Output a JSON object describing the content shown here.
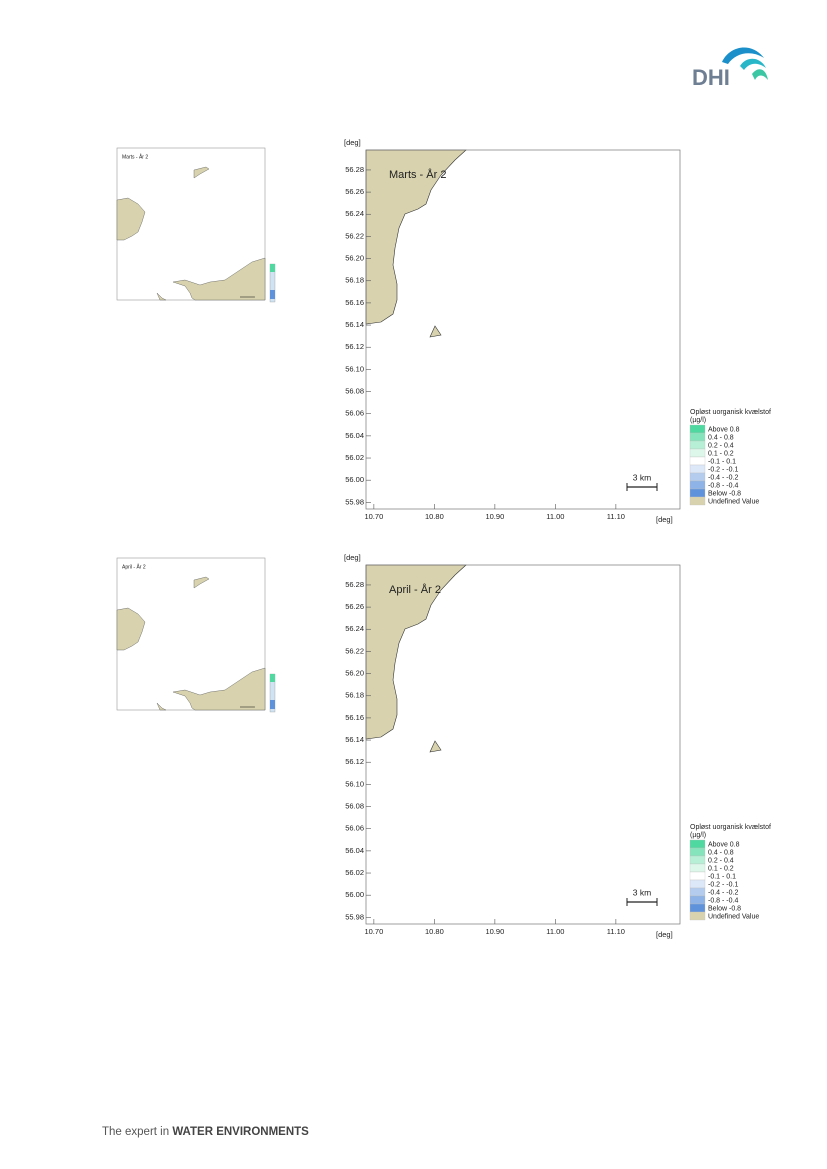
{
  "logo": "DHI",
  "figures": [
    {
      "title": "Marts - År 2",
      "x_unit": "[deg]",
      "y_unit": "[deg]",
      "xlim": [
        10.687,
        11.206
      ],
      "ylim": [
        55.974,
        56.298
      ],
      "xticks": [
        {
          "value": 10.7,
          "label": "10.70"
        },
        {
          "value": 10.8,
          "label": "10.80"
        },
        {
          "value": 10.9,
          "label": "10.90"
        },
        {
          "value": 11.0,
          "label": "11.00"
        },
        {
          "value": 11.1,
          "label": "11.10"
        }
      ],
      "yticks": [
        55.98,
        {
          "value": 56.0,
          "label": "56.00"
        },
        56.02,
        56.04,
        56.06,
        56.08,
        {
          "value": 56.1,
          "label": "56.10"
        },
        56.12,
        56.14,
        56.16,
        56.18,
        {
          "value": 56.2,
          "label": "56.20"
        },
        56.22,
        56.24,
        56.26,
        56.28
      ],
      "scale_bar": "3 km",
      "legend": {
        "title": "Opløst uorganisk kvælstof",
        "unit": "(µg/l)",
        "items": [
          {
            "label": "Above  0.8",
            "color": "#4fd8a0"
          },
          {
            "label": "0.4 -  0.8",
            "color": "#86e4bd"
          },
          {
            "label": "0.2 -  0.4",
            "color": "#b6efd5"
          },
          {
            "label": "0.1 -  0.2",
            "color": "#def7eb"
          },
          {
            "label": "-0.1 -  0.1",
            "color": "#ffffff"
          },
          {
            "label": "-0.2 - -0.1",
            "color": "#dce7f7"
          },
          {
            "label": "-0.4 - -0.2",
            "color": "#b4ccee"
          },
          {
            "label": "-0.8 - -0.4",
            "color": "#8eb3e6"
          },
          {
            "label": "Below -0.8",
            "color": "#5e93dc"
          },
          {
            "label": "Undefined Value",
            "color": "#d8d3ae"
          }
        ]
      }
    },
    {
      "title": "April - År 2",
      "x_unit": "[deg]",
      "y_unit": "[deg]",
      "xlim": [
        10.687,
        11.206
      ],
      "ylim": [
        55.974,
        56.298
      ],
      "xticks": [
        {
          "value": 10.7,
          "label": "10.70"
        },
        {
          "value": 10.8,
          "label": "10.80"
        },
        {
          "value": 10.9,
          "label": "10.90"
        },
        {
          "value": 11.0,
          "label": "11.00"
        },
        {
          "value": 11.1,
          "label": "11.10"
        }
      ],
      "yticks": [
        55.98,
        {
          "value": 56.0,
          "label": "56.00"
        },
        56.02,
        56.04,
        56.06,
        56.08,
        {
          "value": 56.1,
          "label": "56.10"
        },
        56.12,
        56.14,
        56.16,
        56.18,
        {
          "value": 56.2,
          "label": "56.20"
        },
        56.22,
        56.24,
        56.26,
        56.28
      ],
      "scale_bar": "3 km",
      "legend": {
        "title": "Opløst uorganisk kvælstof",
        "unit": "(µg/l)",
        "items": [
          {
            "label": "Above  0.8",
            "color": "#4fd8a0"
          },
          {
            "label": "0.4 -  0.8",
            "color": "#86e4bd"
          },
          {
            "label": "0.2 -  0.4",
            "color": "#b6efd5"
          },
          {
            "label": "0.1 -  0.2",
            "color": "#def7eb"
          },
          {
            "label": "-0.1 -  0.1",
            "color": "#ffffff"
          },
          {
            "label": "-0.2 - -0.1",
            "color": "#dce7f7"
          },
          {
            "label": "-0.4 - -0.2",
            "color": "#b4ccee"
          },
          {
            "label": "-0.8 - -0.4",
            "color": "#8eb3e6"
          },
          {
            "label": "Below -0.8",
            "color": "#5e93dc"
          },
          {
            "label": "Undefined Value",
            "color": "#d8d3ae"
          }
        ]
      }
    }
  ],
  "footer": {
    "lead": "The expert in ",
    "emphasis": "WATER ENVIRONMENTS"
  }
}
